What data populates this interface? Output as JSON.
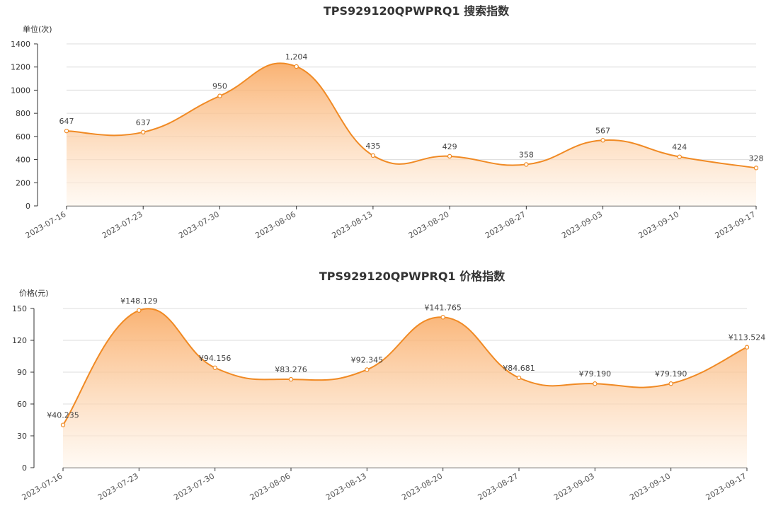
{
  "chart_data": [
    {
      "type": "area",
      "title": "TPS929120QPWPRQ1 搜索指数",
      "unit_label": "单位(次)",
      "categories": [
        "2023-07-16",
        "2023-07-23",
        "2023-07-30",
        "2023-08-06",
        "2023-08-13",
        "2023-08-20",
        "2023-08-27",
        "2023-09-03",
        "2023-09-10",
        "2023-09-17"
      ],
      "values": [
        647,
        637,
        950,
        1204,
        435,
        429,
        358,
        567,
        424,
        328
      ],
      "data_labels": [
        "647",
        "637",
        "950",
        "1,204",
        "435",
        "429",
        "358",
        "567",
        "424",
        "328"
      ],
      "yticks": [
        "0",
        "200",
        "400",
        "600",
        "800",
        "1000",
        "1200",
        "1400"
      ],
      "ylim": [
        0,
        1400
      ],
      "grid": true,
      "legend": "none",
      "colors": {
        "line": "#f08a24",
        "fill_top": "#f9a55a",
        "fill_bottom": "#fff6ec"
      }
    },
    {
      "type": "area",
      "title": "TPS929120QPWPRQ1 价格指数",
      "unit_label": "价格(元)",
      "categories": [
        "2023-07-16",
        "2023-07-23",
        "2023-07-30",
        "2023-08-06",
        "2023-08-13",
        "2023-08-20",
        "2023-08-27",
        "2023-09-03",
        "2023-09-10",
        "2023-09-17"
      ],
      "values": [
        40.235,
        148.129,
        94.156,
        83.276,
        92.345,
        141.765,
        84.681,
        79.19,
        79.19,
        113.524
      ],
      "data_labels": [
        "¥40.235",
        "¥148.129",
        "¥94.156",
        "¥83.276",
        "¥92.345",
        "¥141.765",
        "¥84.681",
        "¥79.190",
        "¥79.190",
        "¥113.524"
      ],
      "yticks": [
        "0",
        "30",
        "60",
        "90",
        "120",
        "150"
      ],
      "ylim": [
        0,
        150
      ],
      "grid": true,
      "legend": "none",
      "colors": {
        "line": "#f08a24",
        "fill_top": "#f9a55a",
        "fill_bottom": "#fff6ec"
      }
    }
  ]
}
